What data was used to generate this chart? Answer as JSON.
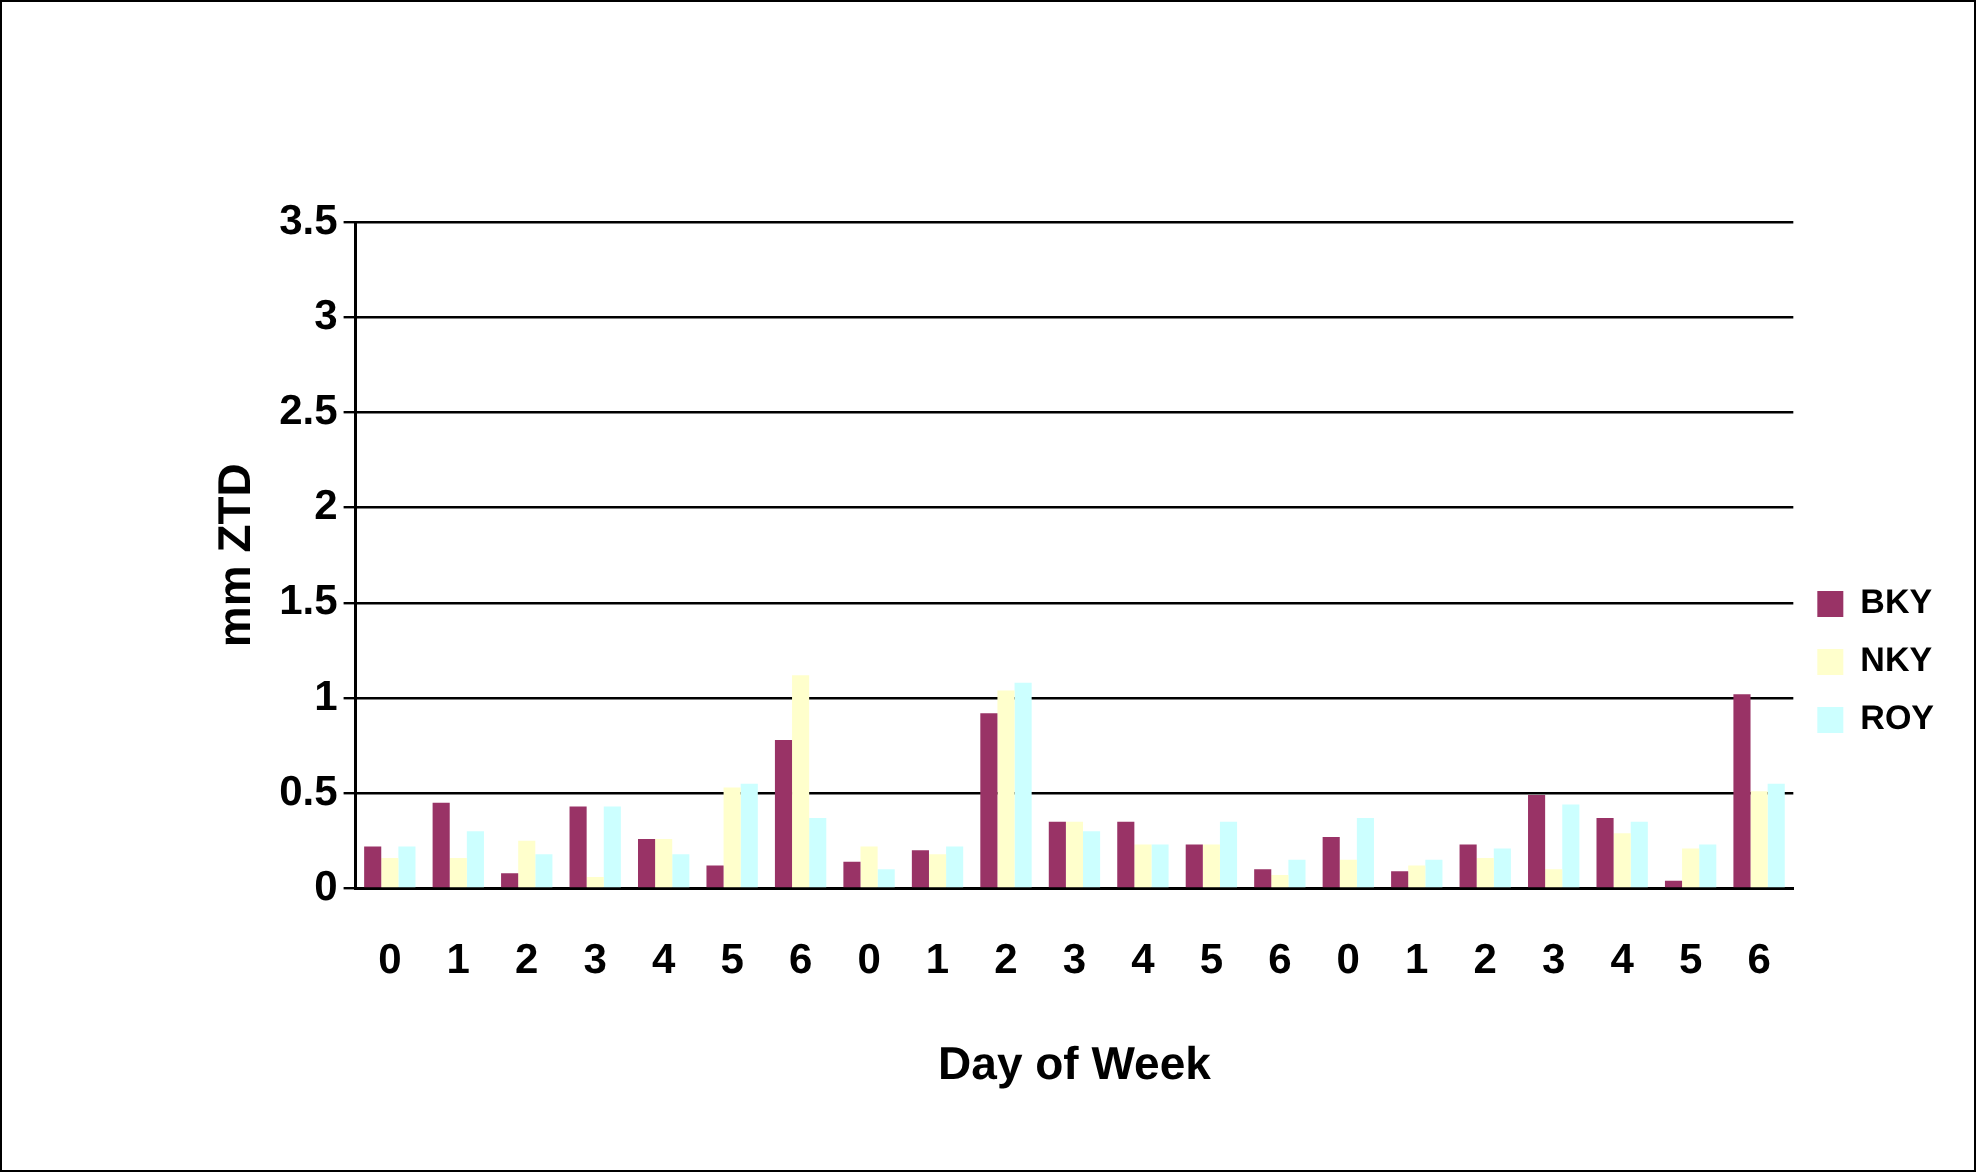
{
  "chart_data": {
    "type": "bar",
    "xlabel": "Day of Week",
    "ylabel": "mm ZTD",
    "categories": [
      "0",
      "1",
      "2",
      "3",
      "4",
      "5",
      "6",
      "0",
      "1",
      "2",
      "3",
      "4",
      "5",
      "6",
      "0",
      "1",
      "2",
      "3",
      "4",
      "5",
      "6"
    ],
    "series": [
      {
        "name": "BKY",
        "color": "#993366",
        "values": [
          0.22,
          0.45,
          0.08,
          0.43,
          0.26,
          0.12,
          0.78,
          0.14,
          0.2,
          0.92,
          0.35,
          0.35,
          0.23,
          0.1,
          0.27,
          0.09,
          0.23,
          0.49,
          0.37,
          0.04,
          1.02
        ]
      },
      {
        "name": "NKY",
        "color": "#ffffcc",
        "values": [
          0.16,
          0.16,
          0.25,
          0.06,
          0.26,
          0.53,
          1.12,
          0.22,
          0.18,
          1.04,
          0.35,
          0.23,
          0.23,
          0.07,
          0.15,
          0.12,
          0.16,
          0.1,
          0.29,
          0.21,
          0.51
        ]
      },
      {
        "name": "ROY",
        "color": "#ccffff",
        "values": [
          0.22,
          0.3,
          0.18,
          0.43,
          0.18,
          0.55,
          0.37,
          0.1,
          0.22,
          1.08,
          0.3,
          0.23,
          0.35,
          0.15,
          0.37,
          0.15,
          0.21,
          0.44,
          0.35,
          0.23,
          0.55
        ]
      }
    ],
    "ylim": [
      0,
      3.5
    ],
    "yticks": [
      0,
      0.5,
      1,
      1.5,
      2,
      2.5,
      3,
      3.5
    ],
    "grid": "y",
    "legend": "right"
  }
}
